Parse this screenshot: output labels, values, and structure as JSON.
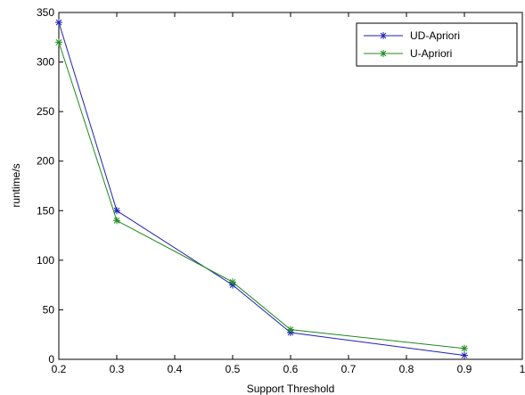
{
  "chart_data": {
    "type": "line",
    "title": "",
    "xlabel": "Support Threshold",
    "ylabel": "runtime/s",
    "xlim": [
      0.2,
      1.0
    ],
    "ylim": [
      0,
      350
    ],
    "x_ticks": [
      "0.2",
      "0.3",
      "0.4",
      "0.5",
      "0.6",
      "0.7",
      "0.8",
      "0.9",
      "1"
    ],
    "y_ticks": [
      "0",
      "50",
      "100",
      "150",
      "200",
      "250",
      "300",
      "350"
    ],
    "grid": false,
    "legend_position": "top-right",
    "series": [
      {
        "name": "UD-Apriori",
        "color": "#1f1fb4",
        "marker": "asterisk",
        "x": [
          0.2,
          0.3,
          0.5,
          0.6,
          0.9
        ],
        "y": [
          340,
          150,
          75,
          27,
          4
        ]
      },
      {
        "name": "U-Apriori",
        "color": "#1c8a1c",
        "marker": "asterisk",
        "x": [
          0.2,
          0.3,
          0.5,
          0.6,
          0.9
        ],
        "y": [
          320,
          140,
          78,
          30,
          11
        ]
      }
    ]
  }
}
